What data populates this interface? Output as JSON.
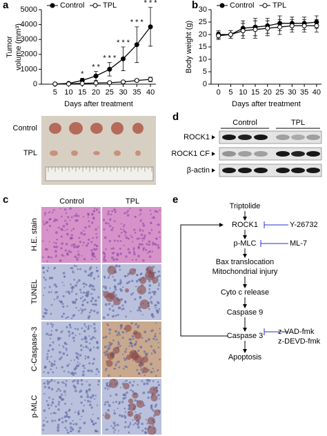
{
  "chart_data": [
    {
      "type": "line",
      "xlabel": "Days after treatment",
      "ylabel": [
        "Tumor",
        "volume (mm³)"
      ],
      "x": [
        5,
        10,
        15,
        20,
        25,
        30,
        35,
        40
      ],
      "xlim": [
        0,
        42
      ],
      "xticks": [
        5,
        10,
        15,
        20,
        25,
        30,
        35,
        40
      ],
      "ylim": [
        0,
        5000
      ],
      "yticks": [
        0,
        1000,
        2000,
        3000,
        4000,
        5000
      ],
      "legend": "top-left",
      "series": [
        {
          "name": "Control",
          "color": "#000000",
          "marker": "filled",
          "values": [
            10,
            50,
            250,
            550,
            1000,
            1700,
            2650,
            3850
          ],
          "errors": [
            20,
            40,
            150,
            300,
            450,
            800,
            1200,
            1300
          ]
        },
        {
          "name": "TPL",
          "color": "#000000",
          "marker": "open",
          "values": [
            10,
            20,
            50,
            80,
            100,
            150,
            250,
            320
          ],
          "errors": [
            10,
            10,
            30,
            50,
            60,
            80,
            100,
            150
          ]
        }
      ],
      "annotations": [
        {
          "x": 15,
          "text": "*"
        },
        {
          "x": 20,
          "text": "* *"
        },
        {
          "x": 25,
          "text": "* * *"
        },
        {
          "x": 30,
          "text": "* * *"
        },
        {
          "x": 35,
          "text": "* * *"
        },
        {
          "x": 40,
          "text": "* * *"
        }
      ]
    },
    {
      "type": "line",
      "xlabel": "Days after treatment",
      "ylabel": "Body weight (g)",
      "x": [
        0,
        5,
        10,
        15,
        20,
        25,
        30,
        35,
        40
      ],
      "xlim": [
        -3,
        42
      ],
      "xticks": [
        0,
        5,
        10,
        15,
        20,
        25,
        30,
        35,
        40
      ],
      "ylim": [
        0,
        30
      ],
      "yticks": [
        0,
        5,
        10,
        15,
        20,
        25,
        30
      ],
      "legend": "top-left",
      "series": [
        {
          "name": "Control",
          "color": "#000000",
          "marker": "filled",
          "values": [
            20,
            20,
            22.5,
            23,
            23.5,
            24.5,
            24.5,
            24.5,
            25
          ],
          "errors": [
            1.5,
            1.5,
            3,
            3.5,
            3,
            3,
            2.5,
            2.5,
            2.5
          ]
        },
        {
          "name": "TPL",
          "color": "#000000",
          "marker": "open",
          "values": [
            19.5,
            20,
            21.5,
            22,
            22.5,
            23,
            23.5,
            23.5,
            23.5
          ],
          "errors": [
            1.5,
            1.5,
            3,
            3.5,
            3,
            3,
            2.5,
            2.5,
            2.5
          ]
        }
      ]
    }
  ],
  "panel_labels": [
    "a",
    "b",
    "c",
    "d",
    "e"
  ],
  "tumor_photo": {
    "rows": [
      "Control",
      "TPL"
    ]
  },
  "western_blot": {
    "groups": [
      "Control",
      "TPL"
    ],
    "bands": [
      "ROCK1",
      "ROCK1 CF",
      "β-actin"
    ]
  },
  "histology": {
    "columns": [
      "Control",
      "TPL"
    ],
    "rows": [
      "H.E. stain",
      "TUNEL",
      "C-Caspase-3",
      "p-MLC"
    ]
  },
  "pathway": {
    "nodes": [
      "Triptolide",
      "ROCK1",
      "p-MLC",
      "Bax translocation",
      "Mitochondrial injury",
      "Cyto c release",
      "Caspase 9",
      "Caspase 3",
      "Apoptosis"
    ],
    "inhibitors": [
      "Y-26732",
      "ML-7",
      "z-VAD-fmk",
      "z-DEVD-fmk"
    ]
  }
}
